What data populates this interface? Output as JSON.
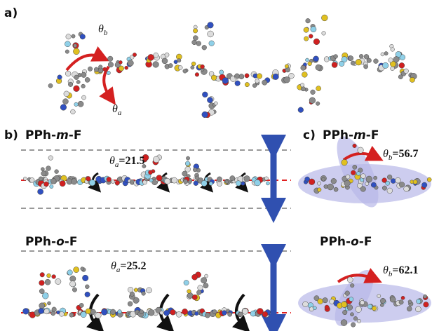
{
  "figure": {
    "panel_a": {
      "label": "a)",
      "angle_b": {
        "symbol": "θ",
        "subscript": "b"
      },
      "angle_a": {
        "symbol": "θ",
        "subscript": "a"
      }
    },
    "panel_b": {
      "label": "b)",
      "top": {
        "title": [
          "PPh-",
          "m",
          "-F"
        ],
        "angle": {
          "symbol": "θ",
          "subscript": "a",
          "text": "=21.5"
        }
      },
      "bottom": {
        "title": [
          "PPh-",
          "o",
          "-F"
        ],
        "angle": {
          "symbol": "θ",
          "subscript": "a",
          "text": "=25.2"
        }
      }
    },
    "panel_c": {
      "label": "c)",
      "top": {
        "title": [
          "PPh-",
          "m",
          "-F"
        ],
        "angle": {
          "symbol": "θ",
          "subscript": "b",
          "text": "=56.7"
        }
      },
      "bottom": {
        "title": [
          "PPh-",
          "o",
          "-F"
        ],
        "angle": {
          "symbol": "θ",
          "subscript": "b",
          "text": "=62.1"
        }
      }
    }
  }
}
